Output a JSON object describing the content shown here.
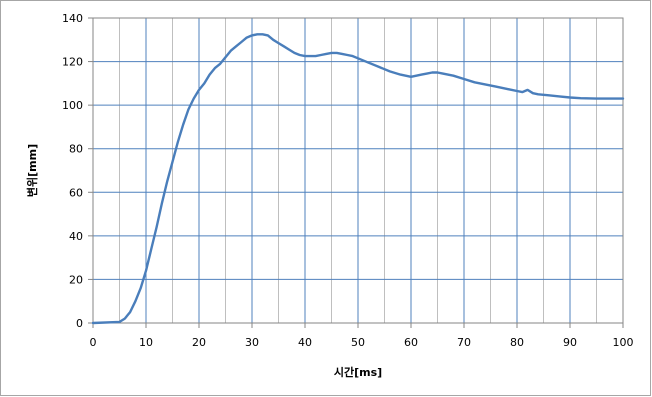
{
  "chart_data": {
    "type": "line",
    "xlabel": "시간[ms]",
    "ylabel": "변위[mm]",
    "xlim": [
      0,
      100
    ],
    "ylim": [
      0,
      140
    ],
    "x_ticks": [
      0,
      10,
      20,
      30,
      40,
      50,
      60,
      70,
      80,
      90,
      100
    ],
    "y_ticks": [
      0,
      20,
      40,
      60,
      80,
      100,
      120,
      140
    ],
    "grid": true,
    "legend": "none",
    "colors": {
      "line": "#4a7ebb",
      "major_grid": "#4f81bd",
      "minor_grid": "#bfbfbf",
      "frame": "#a6a6a6"
    },
    "series": [
      {
        "x": [
          0,
          5,
          6,
          7,
          8,
          9,
          10,
          11,
          12,
          13,
          14,
          15,
          16,
          17,
          18,
          19,
          20,
          21,
          22,
          23,
          24,
          25,
          26,
          27,
          28,
          29,
          30,
          31,
          32,
          33,
          34,
          35,
          36,
          37,
          38,
          39,
          40,
          41,
          42,
          43,
          44,
          45,
          46,
          47,
          48,
          49,
          50,
          52,
          54,
          56,
          58,
          59,
          60,
          61,
          62,
          63,
          64,
          65,
          66,
          68,
          70,
          72,
          74,
          76,
          78,
          80,
          81,
          82,
          83,
          84,
          86,
          88,
          90,
          92,
          95,
          100
        ],
        "values": [
          0,
          0.5,
          2,
          5,
          10,
          16,
          24,
          34,
          44,
          55,
          65,
          74,
          83,
          91,
          98,
          103,
          107,
          110,
          114,
          117,
          119,
          122,
          125,
          127,
          129,
          131,
          132,
          132.5,
          132.5,
          132,
          130,
          128.5,
          127,
          125.5,
          124,
          123,
          122.5,
          122.5,
          122.5,
          123,
          123.5,
          124,
          124,
          123.5,
          123,
          122.5,
          121.5,
          119.5,
          117.5,
          115.5,
          114,
          113.5,
          113,
          113.5,
          114,
          114.5,
          115,
          115,
          114.5,
          113.5,
          112,
          110.5,
          109.5,
          108.5,
          107.5,
          106.5,
          106,
          107,
          105.5,
          105,
          104.5,
          104,
          103.5,
          103.2,
          103,
          103
        ]
      }
    ]
  }
}
